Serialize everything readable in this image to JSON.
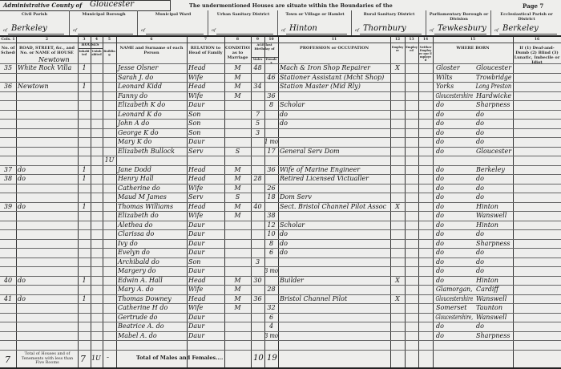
{
  "header": {
    "admin_county_label": "Administrative County of",
    "admin_county_value": "Gloucester",
    "intro_text": "The undermentioned Houses are situate within the Boundaries of the",
    "page_label": "Page 7",
    "districts": [
      {
        "label": "Civil Parish",
        "value": "Berkeley"
      },
      {
        "label": "Municipal Borough",
        "value": ""
      },
      {
        "label": "Municipal Ward",
        "value": ""
      },
      {
        "label": "Urban Sanitary District",
        "value": ""
      },
      {
        "label": "Town or Village or Hamlet",
        "value": "Hinton"
      },
      {
        "label": "Rural Sanitary District",
        "value": "Thornbury"
      },
      {
        "label": "Parliamentary Borough or Division",
        "value": "Tewkesbury"
      },
      {
        "label": "Ecclesiastical Parish or District",
        "value": "Berkeley"
      }
    ],
    "of_prefix": "of"
  },
  "columns": {
    "numbers": [
      "Cols. 1",
      "2",
      "3",
      "4",
      "5",
      "6",
      "7",
      "8",
      "9",
      "10",
      "11",
      "12",
      "13",
      "14",
      "15",
      "16"
    ],
    "labels": [
      "No. of Schedule",
      "ROAD, STREET, &c., and No. or NAME of HOUSE",
      "Inhabited",
      "Uninhabited",
      "Building",
      "NAME and Surname of each Person",
      "RELATION to Head of Family",
      "CONDITION as to Marriage",
      "Males",
      "Females",
      "PROFESSION or OCCUPATION",
      "Employer",
      "Employed",
      "Neither Employer nor Employed",
      "WHERE BORN",
      "If (1) Deaf-and-Dumb (2) Blind (3) Lunatic, Imbecile or Idiot"
    ],
    "houses_group": "HOUSES",
    "age_group": "AGE last Birthday of",
    "address_note": "Newtown"
  },
  "rows": [
    {
      "schedule": "35",
      "address": "White Rock Villa",
      "inhabited": "1",
      "uninhabited": "",
      "building": "",
      "name": "Jesse Olsner",
      "relation": "Head",
      "condition": "M",
      "age_m": "48",
      "age_f": "",
      "occupation": "Mach & Iron Shop Repairer",
      "employer": "X",
      "employed": "",
      "own": "",
      "born_county": "Gloster",
      "born_place": "Gloucester",
      "infirmity": ""
    },
    {
      "schedule": "",
      "address": "",
      "inhabited": "",
      "uninhabited": "",
      "building": "",
      "name": "Sarah J. do",
      "relation": "Wife",
      "condition": "M",
      "age_m": "",
      "age_f": "46",
      "occupation": "Stationer Assistant (Mcht Shop)",
      "employer": "",
      "employed": "",
      "own": "",
      "born_county": "Wilts",
      "born_place": "Trowbridge",
      "infirmity": ""
    },
    {
      "schedule": "36",
      "address": "Newtown",
      "inhabited": "1",
      "uninhabited": "",
      "building": "",
      "name": "Leonard Kidd",
      "relation": "Head",
      "condition": "M",
      "age_m": "34",
      "age_f": "",
      "occupation": "Station Master (Mid Rly)",
      "employer": "",
      "employed": "",
      "own": "",
      "born_county": "Yorks",
      "born_place": "Long Preston",
      "infirmity": ""
    },
    {
      "schedule": "",
      "address": "",
      "inhabited": "",
      "uninhabited": "",
      "building": "",
      "name": "Fanny do",
      "relation": "Wife",
      "condition": "M",
      "age_m": "",
      "age_f": "36",
      "occupation": "",
      "employer": "",
      "employed": "",
      "own": "",
      "born_county": "Gloucestershire",
      "born_place": "Hardwicke",
      "infirmity": ""
    },
    {
      "schedule": "",
      "address": "",
      "inhabited": "",
      "uninhabited": "",
      "building": "",
      "name": "Elizabeth K do",
      "relation": "Daur",
      "condition": "",
      "age_m": "",
      "age_f": "8",
      "occupation": "Scholar",
      "employer": "",
      "employed": "",
      "own": "",
      "born_county": "do",
      "born_place": "Sharpness",
      "infirmity": ""
    },
    {
      "schedule": "",
      "address": "",
      "inhabited": "",
      "uninhabited": "",
      "building": "",
      "name": "Leonard K do",
      "relation": "Son",
      "condition": "",
      "age_m": "7",
      "age_f": "",
      "occupation": "do",
      "employer": "",
      "employed": "",
      "own": "",
      "born_county": "do",
      "born_place": "do",
      "infirmity": ""
    },
    {
      "schedule": "",
      "address": "",
      "inhabited": "",
      "uninhabited": "",
      "building": "",
      "name": "John A do",
      "relation": "Son",
      "condition": "",
      "age_m": "5",
      "age_f": "",
      "occupation": "do",
      "employer": "",
      "employed": "",
      "own": "",
      "born_county": "do",
      "born_place": "do",
      "infirmity": ""
    },
    {
      "schedule": "",
      "address": "",
      "inhabited": "",
      "uninhabited": "",
      "building": "",
      "name": "George K do",
      "relation": "Son",
      "condition": "",
      "age_m": "3",
      "age_f": "",
      "occupation": "",
      "employer": "",
      "employed": "",
      "own": "",
      "born_county": "do",
      "born_place": "do",
      "infirmity": ""
    },
    {
      "schedule": "",
      "address": "",
      "inhabited": "",
      "uninhabited": "",
      "building": "",
      "name": "Mary K do",
      "relation": "Daur",
      "condition": "",
      "age_m": "",
      "age_f": "1 mo",
      "occupation": "",
      "employer": "",
      "employed": "",
      "own": "",
      "born_county": "do",
      "born_place": "do",
      "infirmity": ""
    },
    {
      "schedule": "",
      "address": "",
      "inhabited": "",
      "uninhabited": "",
      "building": "",
      "name": "Elizabeth Bullock",
      "relation": "Serv",
      "condition": "S",
      "age_m": "",
      "age_f": "17",
      "occupation": "General Serv Dom",
      "employer": "",
      "employed": "",
      "own": "",
      "born_county": "do",
      "born_place": "Gloucester",
      "infirmity": ""
    },
    {
      "schedule": "",
      "address": "",
      "inhabited": "",
      "uninhabited": "",
      "building": "1U",
      "name": "",
      "relation": "",
      "condition": "",
      "age_m": "",
      "age_f": "",
      "occupation": "",
      "employer": "",
      "employed": "",
      "own": "",
      "born_county": "",
      "born_place": "",
      "infirmity": ""
    },
    {
      "schedule": "37",
      "address": "do",
      "inhabited": "1",
      "uninhabited": "",
      "building": "",
      "name": "Jane Dodd",
      "relation": "Head",
      "condition": "M",
      "age_m": "",
      "age_f": "36",
      "occupation": "Wife of Marine Engineer",
      "employer": "",
      "employed": "",
      "own": "",
      "born_county": "do",
      "born_place": "Berkeley",
      "infirmity": ""
    },
    {
      "schedule": "38",
      "address": "do",
      "inhabited": "1",
      "uninhabited": "",
      "building": "",
      "name": "Henry Hall",
      "relation": "Head",
      "condition": "M",
      "age_m": "28",
      "age_f": "",
      "occupation": "Retired Licensed Victualler",
      "employer": "",
      "employed": "",
      "own": "",
      "born_county": "do",
      "born_place": "do",
      "infirmity": ""
    },
    {
      "schedule": "",
      "address": "",
      "inhabited": "",
      "uninhabited": "",
      "building": "",
      "name": "Catherine do",
      "relation": "Wife",
      "condition": "M",
      "age_m": "",
      "age_f": "26",
      "occupation": "",
      "employer": "",
      "employed": "",
      "own": "",
      "born_county": "do",
      "born_place": "do",
      "infirmity": ""
    },
    {
      "schedule": "",
      "address": "",
      "inhabited": "",
      "uninhabited": "",
      "building": "",
      "name": "Maud M James",
      "relation": "Serv",
      "condition": "S",
      "age_m": "",
      "age_f": "18",
      "occupation": "Dom Serv",
      "employer": "",
      "employed": "",
      "own": "",
      "born_county": "do",
      "born_place": "do",
      "infirmity": ""
    },
    {
      "schedule": "39",
      "address": "do",
      "inhabited": "1",
      "uninhabited": "",
      "building": "",
      "name": "Thomas Williams",
      "relation": "Head",
      "condition": "M",
      "age_m": "40",
      "age_f": "",
      "occupation": "Sect. Bristol Channel Pilot Assoc",
      "employer": "X",
      "employed": "",
      "own": "",
      "born_county": "do",
      "born_place": "Hinton",
      "infirmity": ""
    },
    {
      "schedule": "",
      "address": "",
      "inhabited": "",
      "uninhabited": "",
      "building": "",
      "name": "Elizabeth do",
      "relation": "Wife",
      "condition": "M",
      "age_m": "",
      "age_f": "38",
      "occupation": "",
      "employer": "",
      "employed": "",
      "own": "",
      "born_county": "do",
      "born_place": "Wanswell",
      "infirmity": ""
    },
    {
      "schedule": "",
      "address": "",
      "inhabited": "",
      "uninhabited": "",
      "building": "",
      "name": "Alethea do",
      "relation": "Daur",
      "condition": "",
      "age_m": "",
      "age_f": "12",
      "occupation": "Scholar",
      "employer": "",
      "employed": "",
      "own": "",
      "born_county": "do",
      "born_place": "Hinton",
      "infirmity": ""
    },
    {
      "schedule": "",
      "address": "",
      "inhabited": "",
      "uninhabited": "",
      "building": "",
      "name": "Clarissa do",
      "relation": "Daur",
      "condition": "",
      "age_m": "",
      "age_f": "10",
      "occupation": "do",
      "employer": "",
      "employed": "",
      "own": "",
      "born_county": "do",
      "born_place": "do",
      "infirmity": ""
    },
    {
      "schedule": "",
      "address": "",
      "inhabited": "",
      "uninhabited": "",
      "building": "",
      "name": "Ivy do",
      "relation": "Daur",
      "condition": "",
      "age_m": "",
      "age_f": "8",
      "occupation": "do",
      "employer": "",
      "employed": "",
      "own": "",
      "born_county": "do",
      "born_place": "Sharpness",
      "infirmity": ""
    },
    {
      "schedule": "",
      "address": "",
      "inhabited": "",
      "uninhabited": "",
      "building": "",
      "name": "Evelyn do",
      "relation": "Daur",
      "condition": "",
      "age_m": "",
      "age_f": "6",
      "occupation": "do",
      "employer": "",
      "employed": "",
      "own": "",
      "born_county": "do",
      "born_place": "do",
      "infirmity": ""
    },
    {
      "schedule": "",
      "address": "",
      "inhabited": "",
      "uninhabited": "",
      "building": "",
      "name": "Archibald do",
      "relation": "Son",
      "condition": "",
      "age_m": "3",
      "age_f": "",
      "occupation": "",
      "employer": "",
      "employed": "",
      "own": "",
      "born_county": "do",
      "born_place": "do",
      "infirmity": ""
    },
    {
      "schedule": "",
      "address": "",
      "inhabited": "",
      "uninhabited": "",
      "building": "",
      "name": "Margery do",
      "relation": "Daur",
      "condition": "",
      "age_m": "",
      "age_f": "3 mo",
      "occupation": "",
      "employer": "",
      "employed": "",
      "own": "",
      "born_county": "do",
      "born_place": "do",
      "infirmity": ""
    },
    {
      "schedule": "40",
      "address": "do",
      "inhabited": "1",
      "uninhabited": "",
      "building": "",
      "name": "Edwin A. Hall",
      "relation": "Head",
      "condition": "M",
      "age_m": "30",
      "age_f": "",
      "occupation": "Builder",
      "employer": "X",
      "employed": "",
      "own": "",
      "born_county": "do",
      "born_place": "Hinton",
      "infirmity": ""
    },
    {
      "schedule": "",
      "address": "",
      "inhabited": "",
      "uninhabited": "",
      "building": "",
      "name": "Mary A. do",
      "relation": "Wife",
      "condition": "M",
      "age_m": "",
      "age_f": "28",
      "occupation": "",
      "employer": "",
      "employed": "",
      "own": "",
      "born_county": "Glamorgan,",
      "born_place": "Cardiff",
      "infirmity": ""
    },
    {
      "schedule": "41",
      "address": "do",
      "inhabited": "1",
      "uninhabited": "",
      "building": "",
      "name": "Thomas Downey",
      "relation": "Head",
      "condition": "M",
      "age_m": "36",
      "age_f": "",
      "occupation": "Bristol Channel Pilot",
      "employer": "X",
      "employed": "",
      "own": "",
      "born_county": "Gloucestershire",
      "born_place": "Wanswell",
      "infirmity": ""
    },
    {
      "schedule": "",
      "address": "",
      "inhabited": "",
      "uninhabited": "",
      "building": "",
      "name": "Catherine H do",
      "relation": "Wife",
      "condition": "M",
      "age_m": "",
      "age_f": "32",
      "occupation": "",
      "employer": "",
      "employed": "",
      "own": "",
      "born_county": "Somerset",
      "born_place": "Taunton",
      "infirmity": ""
    },
    {
      "schedule": "",
      "address": "",
      "inhabited": "",
      "uninhabited": "",
      "building": "",
      "name": "Gertrude do",
      "relation": "Daur",
      "condition": "",
      "age_m": "",
      "age_f": "6",
      "occupation": "",
      "employer": "",
      "employed": "",
      "own": "",
      "born_county": "Gloucestershire,",
      "born_place": "Wanswell",
      "infirmity": ""
    },
    {
      "schedule": "",
      "address": "",
      "inhabited": "",
      "uninhabited": "",
      "building": "",
      "name": "Beatrice A. do",
      "relation": "Daur",
      "condition": "",
      "age_m": "",
      "age_f": "4",
      "occupation": "",
      "employer": "",
      "employed": "",
      "own": "",
      "born_county": "do",
      "born_place": "do",
      "infirmity": ""
    },
    {
      "schedule": "",
      "address": "",
      "inhabited": "",
      "uninhabited": "",
      "building": "",
      "name": "Mabel A. do",
      "relation": "Daur",
      "condition": "",
      "age_m": "",
      "age_f": "3 mo",
      "occupation": "",
      "employer": "",
      "employed": "",
      "own": "",
      "born_county": "do",
      "born_place": "Sharpness",
      "infirmity": ""
    },
    {
      "schedule": "",
      "address": "",
      "inhabited": "",
      "uninhabited": "",
      "building": "",
      "name": "",
      "relation": "",
      "condition": "",
      "age_m": "",
      "age_f": "",
      "occupation": "",
      "employer": "",
      "employed": "",
      "own": "",
      "born_county": "",
      "born_place": "",
      "infirmity": ""
    }
  ],
  "totals": {
    "count": "7",
    "houses_label": "Total of Houses and of Tenements with less than Five Rooms",
    "inhabited": "7",
    "uninhabited": "1U",
    "building": "-",
    "persons_label": "Total of Males and Females....",
    "males": "10",
    "females": "19"
  }
}
